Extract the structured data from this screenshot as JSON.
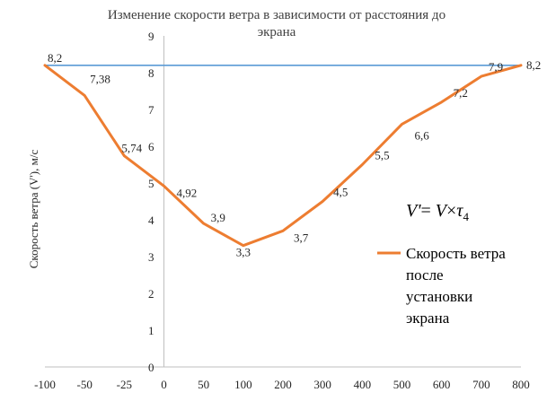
{
  "chart_data": {
    "type": "line",
    "title_line1": "Изменение скорости ветра в зависимости от расстояния до",
    "title_line2": "экрана",
    "ylabel": "Скорость ветра (V'), м/с",
    "xlabel": "",
    "categories": [
      "-100",
      "-50",
      "-25",
      "0",
      "50",
      "100",
      "200",
      "300",
      "400",
      "500",
      "600",
      "700",
      "800"
    ],
    "y_ticks": [
      "0",
      "1",
      "2",
      "3",
      "4",
      "5",
      "6",
      "7",
      "8",
      "9"
    ],
    "ylim": [
      0,
      9
    ],
    "series": [
      {
        "name": "Скорость ветра после установки экрана",
        "legend_lines": [
          "Скорость ветра",
          "после",
          "установки",
          "экрана"
        ],
        "color": "#ED7D31",
        "values": [
          8.2,
          7.38,
          5.74,
          4.92,
          3.9,
          3.3,
          3.7,
          4.5,
          5.5,
          6.6,
          7.2,
          7.9,
          8.2
        ],
        "labels": [
          "8,2",
          "7,38",
          "5,74",
          "4,92",
          "3,9",
          "3,3",
          "3,7",
          "4,5",
          "5,5",
          "6,6",
          "7,2",
          "7,9",
          "8,2"
        ]
      }
    ],
    "reference_line": {
      "value": 8.2,
      "color": "#5B9BD5"
    },
    "axis_color": "#BFBFBF",
    "legend_position": "right",
    "grid": false
  },
  "formula": {
    "V_prime": "V'",
    "equals": "= ",
    "V": "V",
    "times": "×",
    "tau": "τ",
    "subscript": "4"
  }
}
